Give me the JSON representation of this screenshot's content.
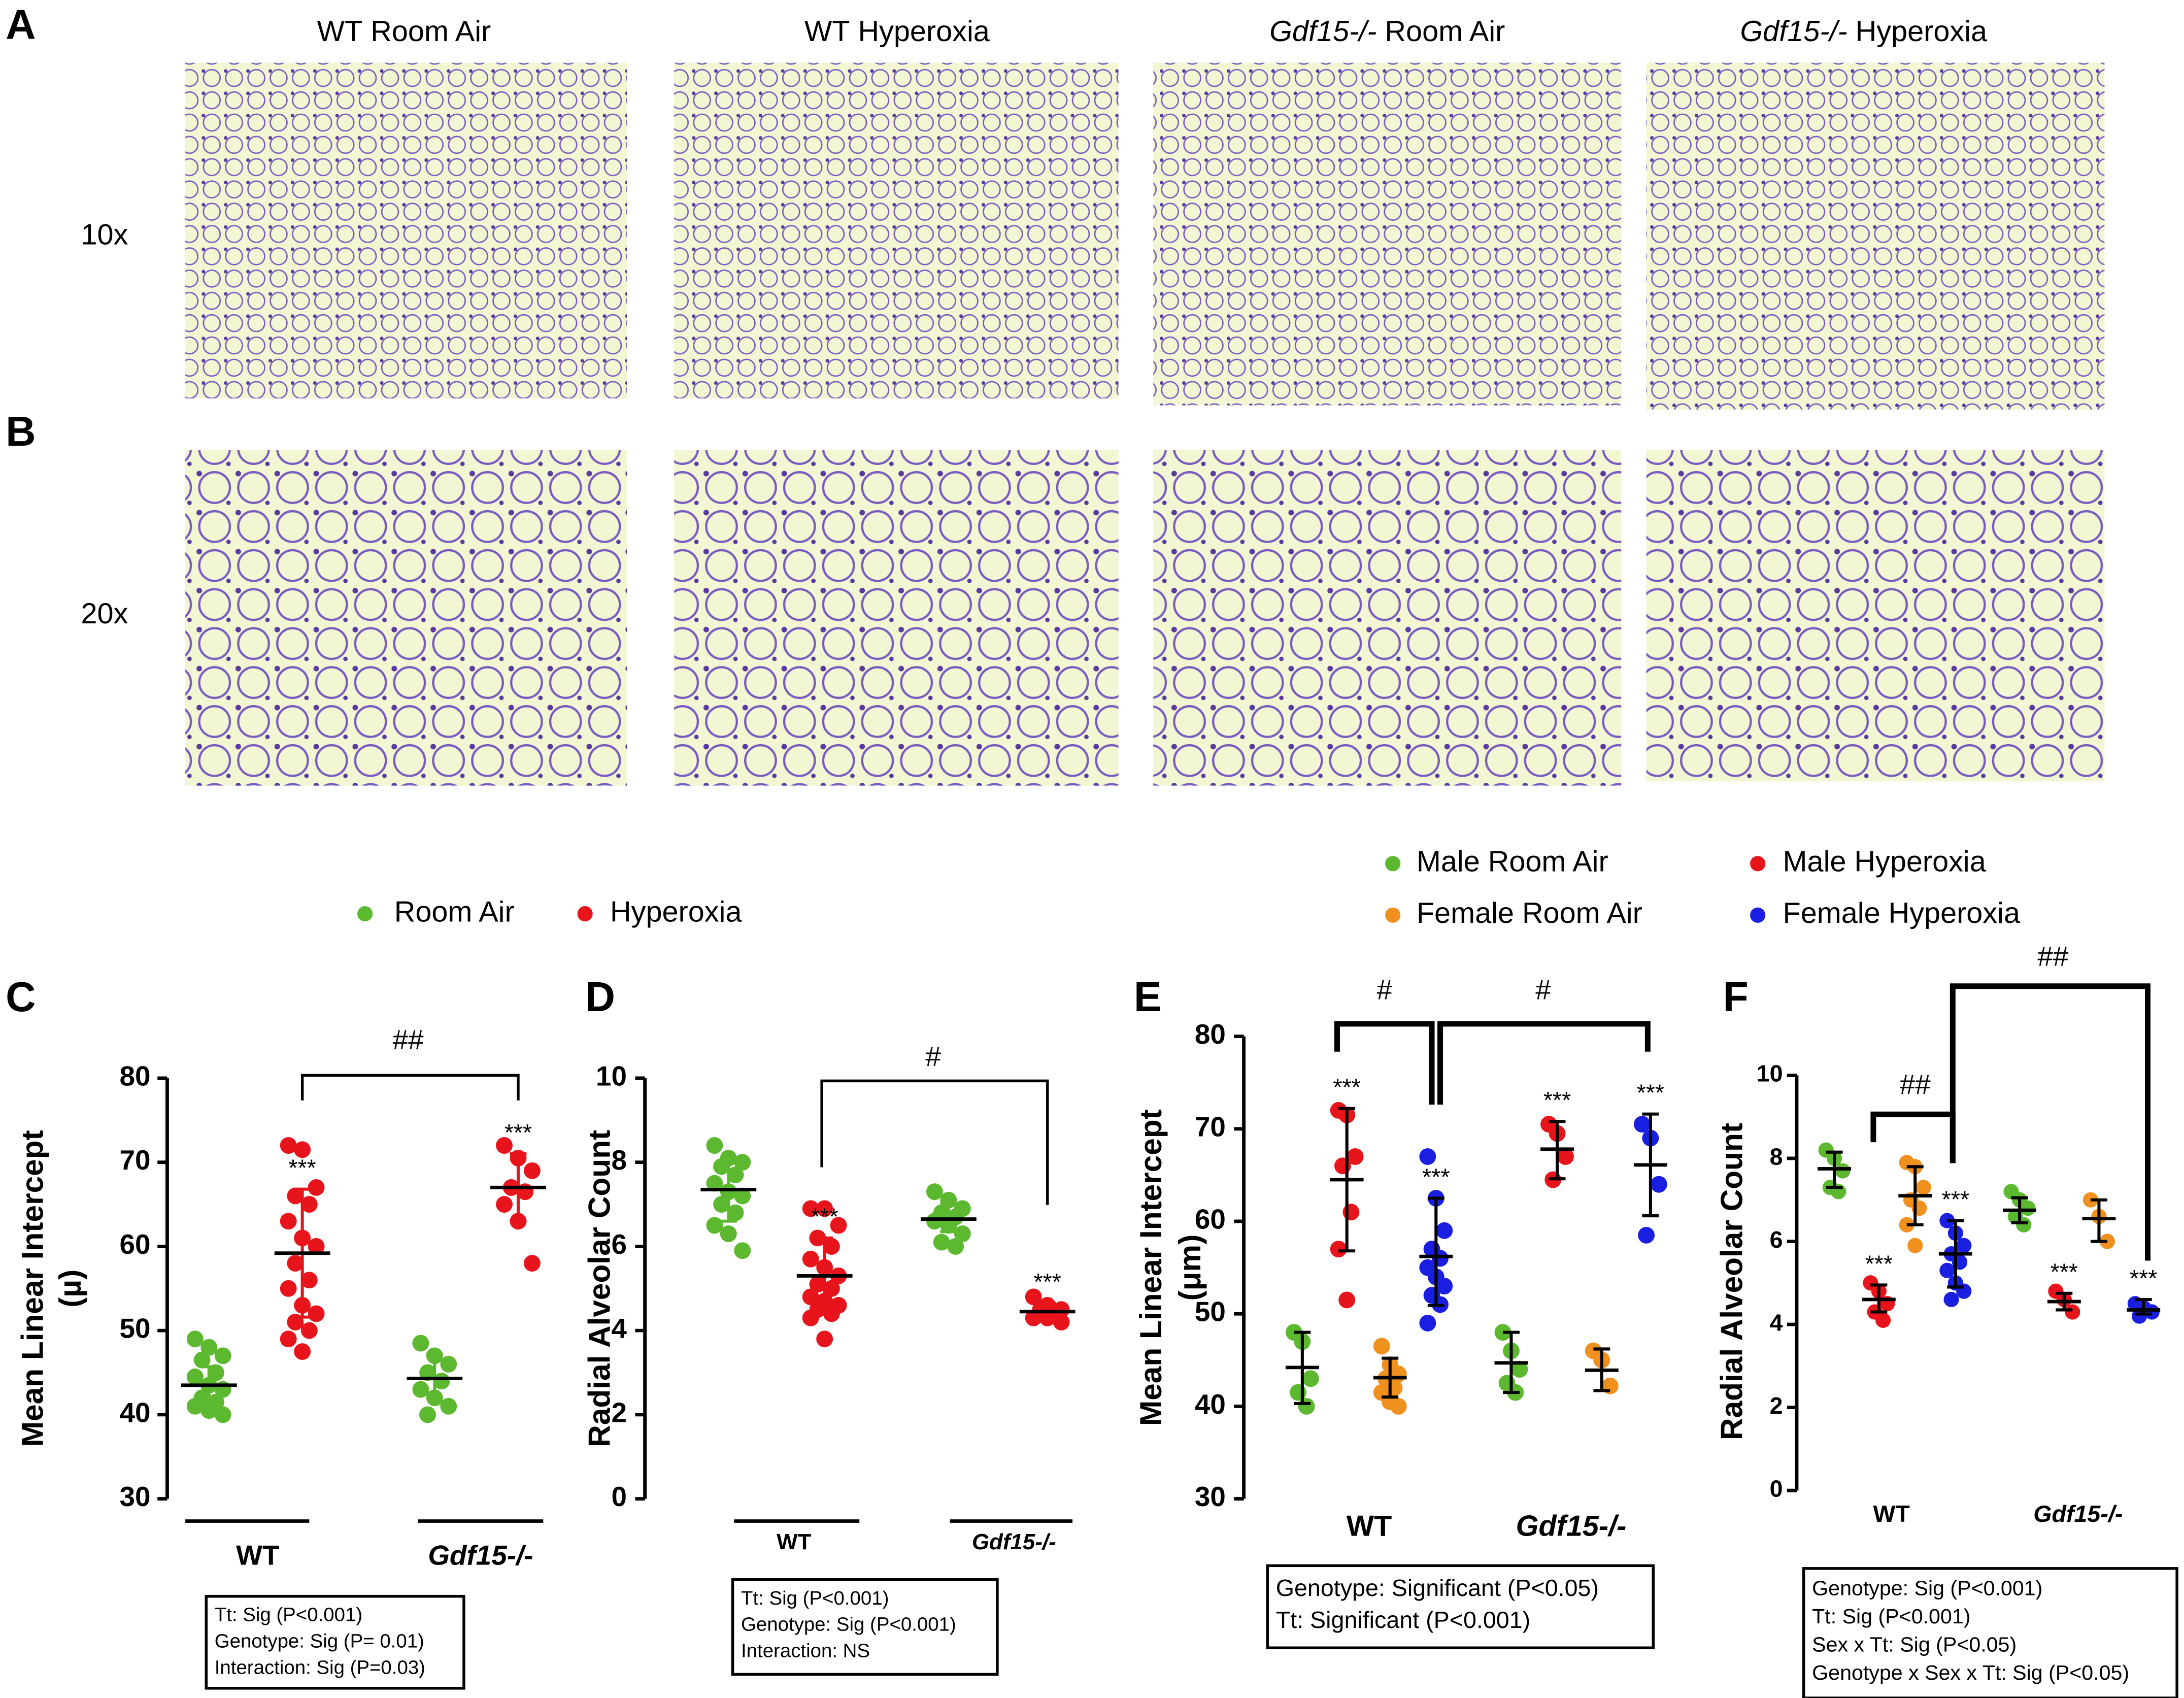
{
  "panels": {
    "labels": [
      "A",
      "B"
    ],
    "columns": [
      {
        "genotype": "WT",
        "condition": "Room Air"
      },
      {
        "genotype": "WT",
        "condition": "Hyperoxia"
      },
      {
        "genotype": "Gdf15-/-",
        "condition": "Room Air",
        "italic": true
      },
      {
        "genotype": "Gdf15-/-",
        "condition": "Hyperoxia",
        "italic": true
      }
    ],
    "rows": [
      "10x",
      "20x"
    ]
  },
  "chart_data": [
    {
      "type": "dotplot",
      "panel": "C",
      "ylabel": [
        "Mean Linear Intercept",
        "(µ)"
      ],
      "categories": [
        "WT",
        "Gdf15-/-"
      ],
      "ylim": [
        30,
        80
      ],
      "yticks": [
        30,
        40,
        50,
        60,
        70,
        80
      ],
      "series": [
        {
          "name": "Room Air",
          "color": "#5cb82e",
          "values": [
            [
              49,
              48,
              47,
              46.5,
              45,
              44.5,
              43.5,
              43,
              42,
              41.5,
              41,
              40.5,
              40
            ],
            [
              48.5,
              47,
              46,
              45,
              44,
              43,
              42,
              41,
              40
            ]
          ],
          "means": [
            43.5,
            44.3
          ],
          "errors": [
            [
              42,
              45.7
            ],
            [
              42,
              47.2
            ]
          ]
        },
        {
          "name": "Hyperoxia",
          "color": "#e8141c",
          "values": [
            [
              72,
              71.5,
              67,
              66,
              65,
              63,
              61,
              60,
              58,
              56,
              55,
              53,
              52,
              51,
              50,
              49,
              47.5
            ],
            [
              72,
              70.5,
              69,
              67,
              66.5,
              65,
              63,
              58
            ]
          ],
          "means": [
            59.2,
            67
          ],
          "errors": [
            [
              51.6,
              66.8
            ],
            [
              63,
              71
            ]
          ],
          "labels": [
            "***",
            "***"
          ]
        }
      ],
      "comparisons": [
        "##"
      ],
      "stats": [
        "Tt: Sig (P<0.001)",
        "Genotype: Sig (P= 0.01)",
        "Interaction: Sig (P=0.03)"
      ]
    },
    {
      "type": "dotplot",
      "panel": "D",
      "ylabel": [
        "Radial Alveolar Count"
      ],
      "categories": [
        "WT",
        "Gdf15-/-"
      ],
      "ylim": [
        0,
        10
      ],
      "yticks": [
        0,
        2,
        4,
        6,
        8,
        10
      ],
      "series": [
        {
          "color": "#5cb82e",
          "values": [
            [
              8.4,
              8.1,
              8.0,
              7.9,
              7.7,
              7.5,
              7.3,
              7.2,
              7.0,
              6.8,
              6.5,
              6.3,
              5.9
            ],
            [
              7.3,
              7.1,
              6.9,
              6.8,
              6.7,
              6.6,
              6.5,
              6.3,
              6.1,
              6.0
            ]
          ],
          "means": [
            7.35,
            6.65
          ],
          "errors": [
            [
              6.6,
              8.05
            ],
            [
              6.35,
              7.0
            ]
          ]
        },
        {
          "color": "#e8141c",
          "values": [
            [
              6.9,
              6.9,
              6.5,
              6.2,
              6.0,
              5.7,
              5.5,
              5.3,
              5.1,
              5.0,
              4.8,
              4.7,
              4.6,
              4.5,
              4.4,
              4.3,
              3.8
            ],
            [
              4.8,
              4.6,
              4.5,
              4.5,
              4.4,
              4.3,
              4.3,
              4.2
            ]
          ],
          "means": [
            5.3,
            4.45
          ],
          "errors": [
            [
              4.45,
              6.2
            ],
            [
              4.25,
              4.65
            ]
          ],
          "labels": [
            "***",
            "***"
          ]
        }
      ],
      "comparisons": [
        "#"
      ],
      "stats": [
        "Tt: Sig (P<0.001)",
        "Genotype:  Sig (P<0.001)",
        "Interaction: NS"
      ]
    },
    {
      "type": "dotplot",
      "panel": "E",
      "ylabel": [
        "Mean Linear Intercept",
        "(μm)"
      ],
      "categories": [
        "WT",
        "Gdf15-/-"
      ],
      "ylim": [
        30,
        80
      ],
      "yticks": [
        30,
        40,
        50,
        60,
        70,
        80
      ],
      "errorbar_color": "#000000",
      "series": [
        {
          "name": "Male Room Air",
          "color": "#5cb82e",
          "values": [
            [
              48,
              47,
              43,
              41.5,
              40
            ],
            [
              48,
              46,
              44,
              42.5,
              41.5
            ]
          ],
          "means": [
            44.2,
            44.7
          ],
          "errors": [
            [
              40.3,
              48
            ],
            [
              41.5,
              48
            ]
          ]
        },
        {
          "name": "Male Hyperoxia",
          "color": "#e8141c",
          "values": [
            [
              72,
              71.5,
              67,
              66,
              61,
              57,
              51.5
            ],
            [
              70.5,
              69.5,
              67,
              64.5
            ]
          ],
          "means": [
            64.5,
            67.8
          ],
          "errors": [
            [
              56.8,
              72.2
            ],
            [
              64.6,
              70.8
            ]
          ],
          "labels": [
            "***",
            "***"
          ]
        },
        {
          "name": "Female Room Air",
          "color": "#f0901e",
          "values": [
            [
              46.5,
              44.5,
              43.5,
              43,
              42,
              41.5,
              40.5,
              40
            ],
            [
              46,
              45,
              42.2
            ]
          ],
          "means": [
            43.1,
            43.9
          ],
          "errors": [
            [
              41,
              45.2
            ],
            [
              41.7,
              46.2
            ]
          ]
        },
        {
          "name": "Female Hyperoxia",
          "color": "#1a1ee0",
          "values": [
            [
              67,
              62.5,
              59,
              57,
              56,
              55,
              54,
              53,
              52,
              51,
              49
            ],
            [
              70.5,
              69,
              64,
              58.5
            ]
          ],
          "means": [
            56.2,
            66.1
          ],
          "errors": [
            [
              50.9,
              62.5
            ],
            [
              60.6,
              71.6
            ]
          ],
          "labels": [
            "***",
            "***"
          ]
        }
      ],
      "comparisons": [
        "#",
        "#"
      ],
      "stats": [
        "Genotype: Significant (P<0.05)",
        "Tt: Significant (P<0.001)"
      ]
    },
    {
      "type": "dotplot",
      "panel": "F",
      "ylabel": [
        "Radial Alveolar Count"
      ],
      "categories": [
        "WT",
        "Gdf15-/-"
      ],
      "ylim": [
        0,
        10
      ],
      "yticks": [
        0,
        2,
        4,
        6,
        8,
        10
      ],
      "errorbar_color": "#000000",
      "series": [
        {
          "color": "#5cb82e",
          "values": [
            [
              8.2,
              8.0,
              7.7,
              7.3,
              7.2
            ],
            [
              7.2,
              7.0,
              6.8,
              6.6,
              6.4
            ]
          ],
          "means": [
            7.75,
            6.75
          ],
          "errors": [
            [
              7.3,
              8.15
            ],
            [
              6.45,
              7.05
            ]
          ]
        },
        {
          "color": "#e8141c",
          "values": [
            [
              5.0,
              4.8,
              4.5,
              4.3,
              4.1
            ],
            [
              4.8,
              4.6,
              4.3
            ]
          ],
          "means": [
            4.6,
            4.55
          ],
          "errors": [
            [
              4.3,
              4.95
            ],
            [
              4.35,
              4.75
            ]
          ],
          "labels": [
            "***",
            "***"
          ]
        },
        {
          "color": "#f0901e",
          "values": [
            [
              7.9,
              7.8,
              7.3,
              7.0,
              6.8,
              6.4,
              5.9
            ],
            [
              7.0,
              6.6,
              6.0
            ]
          ],
          "means": [
            7.1,
            6.55
          ],
          "errors": [
            [
              6.4,
              7.8
            ],
            [
              6.0,
              7.0
            ]
          ]
        },
        {
          "color": "#1a1ee0",
          "values": [
            [
              6.5,
              6.2,
              5.9,
              5.7,
              5.5,
              5.3,
              5.0,
              4.8,
              4.6
            ],
            [
              4.5,
              4.4,
              4.3,
              4.2
            ]
          ],
          "means": [
            5.7,
            4.35
          ],
          "errors": [
            [
              4.9,
              6.5
            ],
            [
              4.25,
              4.6
            ]
          ],
          "labels": [
            "***",
            "***"
          ]
        }
      ],
      "comparisons": [
        "##",
        "##"
      ],
      "stats": [
        "Genotype: Sig (P<0.001)",
        "Tt: Sig (P<0.001)",
        "Sex x Tt: Sig (P<0.05)",
        "Genotype x Sex x Tt: Sig (P<0.05)"
      ]
    }
  ]
}
